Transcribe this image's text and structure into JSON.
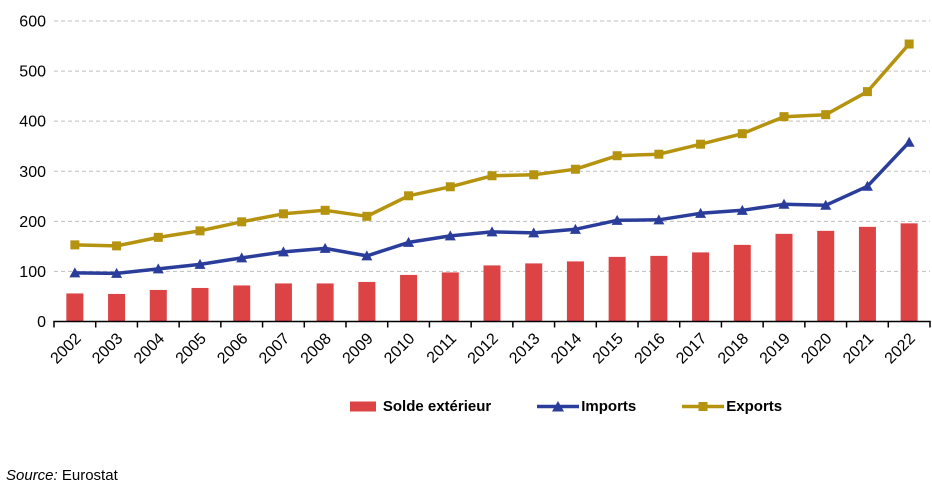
{
  "chart_data": {
    "type": "combo",
    "categories": [
      "2002",
      "2003",
      "2004",
      "2005",
      "2006",
      "2007",
      "2008",
      "2009",
      "2010",
      "2011",
      "2012",
      "2013",
      "2014",
      "2015",
      "2016",
      "2017",
      "2018",
      "2019",
      "2020",
      "2021",
      "2022"
    ],
    "series": [
      {
        "name": "Solde extérieur",
        "type": "bar",
        "marker": "none",
        "color": "#DC4345",
        "values": [
          56,
          55,
          63,
          67,
          72,
          76,
          76,
          79,
          93,
          98,
          112,
          116,
          120,
          129,
          131,
          138,
          153,
          175,
          181,
          189,
          196
        ]
      },
      {
        "name": "Imports",
        "type": "line",
        "marker": "triangle",
        "color": "#2B3D9B",
        "values": [
          97,
          96,
          105,
          114,
          127,
          139,
          146,
          131,
          158,
          171,
          179,
          177,
          184,
          202,
          203,
          216,
          222,
          234,
          232,
          270,
          358
        ]
      },
      {
        "name": "Exports",
        "type": "line",
        "marker": "square",
        "color": "#B6930E",
        "values": [
          153,
          151,
          168,
          181,
          199,
          215,
          222,
          210,
          251,
          269,
          291,
          293,
          304,
          331,
          334,
          354,
          375,
          409,
          413,
          459,
          554
        ]
      }
    ],
    "ylim": [
      0,
      600
    ],
    "yticks": [
      0,
      100,
      200,
      300,
      400,
      500,
      600
    ],
    "grid": "horizontal-dashed",
    "gridline_color": "#BFBFBF",
    "axis_color": "#000000",
    "legend_position": "bottom-center"
  },
  "footer": {
    "source_label": "Source:",
    "source_text": "Eurostat"
  }
}
